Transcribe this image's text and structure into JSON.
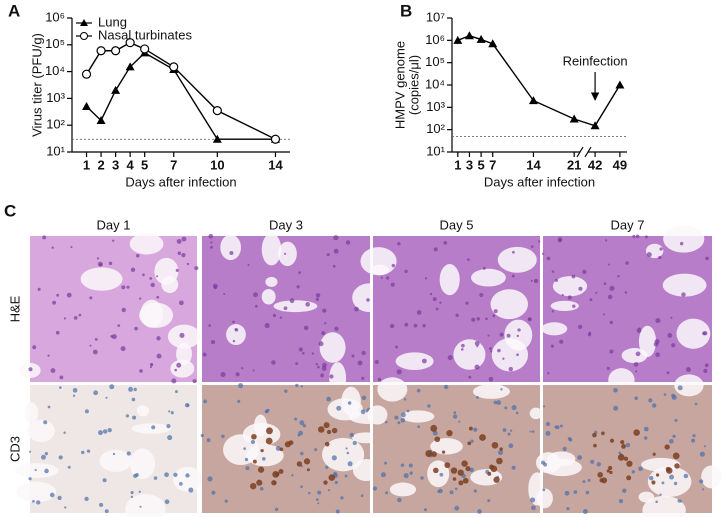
{
  "chart_data": [
    {
      "type": "line",
      "panel_label": "A",
      "ylabel": [
        "Virus titer (PFU/g)"
      ],
      "xlabel": "Days after infection",
      "log_y": true,
      "ylim": [
        10,
        1000000
      ],
      "yticks": [
        {
          "value": 10,
          "label": "10¹"
        },
        {
          "value": 100,
          "label": "10²"
        },
        {
          "value": 1000,
          "label": "10³"
        },
        {
          "value": 10000,
          "label": "10⁴"
        },
        {
          "value": 100000,
          "label": "10⁵"
        },
        {
          "value": 1000000,
          "label": "10⁶"
        }
      ],
      "xlim": [
        0,
        15
      ],
      "xticks": [
        1,
        2,
        3,
        4,
        5,
        7,
        10,
        14
      ],
      "x": [
        1,
        2,
        3,
        4,
        5,
        7,
        10,
        14
      ],
      "hline": 30,
      "legend": "upper left",
      "series": [
        {
          "name": "Lung",
          "color": "#000000",
          "marker": "triangle",
          "values": [
            500,
            150,
            2000,
            15000,
            50000,
            12000,
            30,
            30
          ]
        },
        {
          "name": "Nasal turbinates",
          "color": "#000000",
          "marker": "circle-open",
          "values": [
            8000,
            60000,
            60000,
            120000,
            70000,
            15000,
            350,
            30
          ]
        }
      ]
    },
    {
      "type": "line",
      "panel_label": "B",
      "ylabel": [
        "HMPV genome",
        "(copies/μl)"
      ],
      "xlabel": "Days after infection",
      "log_y": true,
      "ylim": [
        10,
        10000000
      ],
      "yticks": [
        {
          "value": 10,
          "label": "10¹"
        },
        {
          "value": 100,
          "label": "10²"
        },
        {
          "value": 1000,
          "label": "10³"
        },
        {
          "value": 10000,
          "label": "10⁴"
        },
        {
          "value": 100000,
          "label": "10⁵"
        },
        {
          "value": 1000000,
          "label": "10⁶"
        },
        {
          "value": 10000000,
          "label": "10⁷"
        }
      ],
      "x_segments": [
        [
          0,
          22
        ],
        [
          40,
          51
        ]
      ],
      "xticks": [
        1,
        3,
        5,
        7,
        14,
        21,
        42,
        49
      ],
      "x": [
        1,
        3,
        5,
        7,
        14,
        21,
        42,
        49
      ],
      "hline": 50,
      "annotation": {
        "text": "Reinfection",
        "x": 42
      },
      "series": [
        {
          "name": "HMPV genome",
          "color": "#000000",
          "marker": "triangle",
          "values": [
            1000000,
            1600000,
            1100000,
            700000,
            2000,
            300,
            150,
            10000
          ]
        }
      ]
    }
  ],
  "panel_c": {
    "label": "C",
    "columns": [
      "Day 1",
      "Day 3",
      "Day 5",
      "Day 7"
    ],
    "rows": [
      "H&E",
      "CD3"
    ]
  }
}
